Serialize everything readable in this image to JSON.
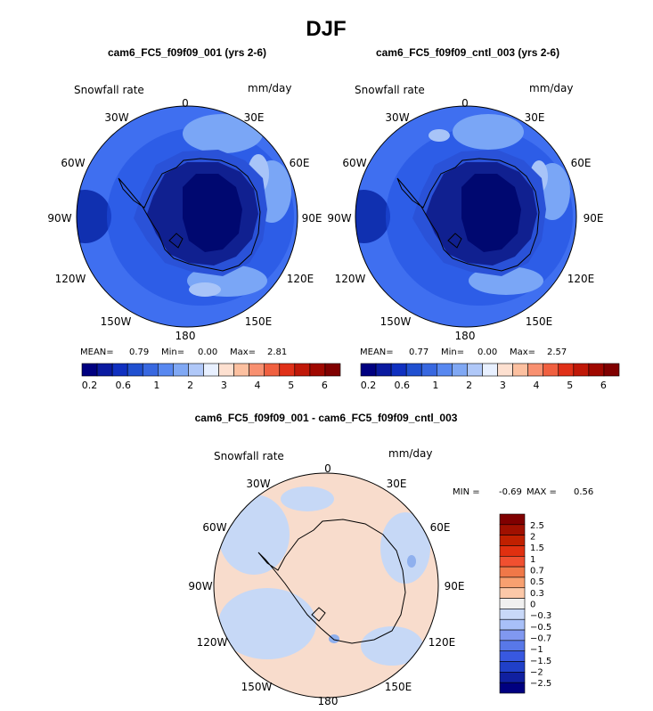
{
  "season": "DJF",
  "panels": [
    {
      "title": "cam6_FC5_f09f09_001 (yrs 2-6)",
      "field_label": "Snowfall rate",
      "units": "mm/day",
      "stats": {
        "mean_label": "MEAN=",
        "mean": "0.79",
        "min_label": "Min=",
        "min": "0.00",
        "max_label": "Max=",
        "max": "2.81"
      }
    },
    {
      "title": "cam6_FC5_f09f09_cntl_003 (yrs 2-6)",
      "field_label": "Snowfall rate",
      "units": "mm/day",
      "stats": {
        "mean_label": "MEAN=",
        "mean": "0.77",
        "min_label": "Min=",
        "min": "0.00",
        "max_label": "Max=",
        "max": "2.57"
      }
    }
  ],
  "diff_panel": {
    "title": "cam6_FC5_f09f09_001 - cam6_FC5_f09f09_cntl_003",
    "field_label": "Snowfall rate",
    "units": "mm/day",
    "stats": {
      "min_label": "MIN =",
      "min": "-0.69",
      "max_label": "MAX =",
      "max": "0.56"
    }
  },
  "longitude_labels": [
    "0",
    "30E",
    "60E",
    "90E",
    "120E",
    "150E",
    "180",
    "150W",
    "120W",
    "90W",
    "60W",
    "30W"
  ],
  "abs_colorbar": {
    "colors": [
      "#000080",
      "#0a1aa0",
      "#1030c0",
      "#2050d0",
      "#3868e0",
      "#5888f0",
      "#80a8f4",
      "#b0c8f8",
      "#e8f0ff",
      "#fde0d0",
      "#fcc0a0",
      "#f89070",
      "#f06040",
      "#e03018",
      "#c01808",
      "#a00800",
      "#800000"
    ],
    "tick_labels": [
      "0.2",
      "0.6",
      "1",
      "2",
      "3",
      "4",
      "5",
      "6"
    ]
  },
  "diff_colorbar": {
    "colors": [
      "#800000",
      "#a01000",
      "#c02000",
      "#e03010",
      "#f05030",
      "#f07848",
      "#f8a070",
      "#fcc8a8",
      "#f0f0f0",
      "#c8d8f8",
      "#a8c0f8",
      "#8098f0",
      "#5878e8",
      "#3858e0",
      "#2040c8",
      "#1020a0",
      "#000080"
    ],
    "tick_labels": [
      "2.5",
      "2",
      "1.5",
      "1",
      "0.7",
      "0.5",
      "0.3",
      "0",
      "−0.3",
      "−0.5",
      "−0.7",
      "−1",
      "−1.5",
      "−2",
      "−2.5"
    ]
  },
  "map_colors": {
    "ocean_outer": "#3f6ff0",
    "ocean_ring": "#1f4fe0",
    "edge": "#1030b0",
    "coastal": "#2a52d8",
    "interior": "#102090",
    "deep": "#000870",
    "light_band": "#7aa6f6",
    "light_patch": "#a8c4f8",
    "diff_base": "#f8dccc",
    "diff_light_blue": "#c6d8f6",
    "diff_blue": "#8fb0ee",
    "coast_line": "#000000"
  }
}
